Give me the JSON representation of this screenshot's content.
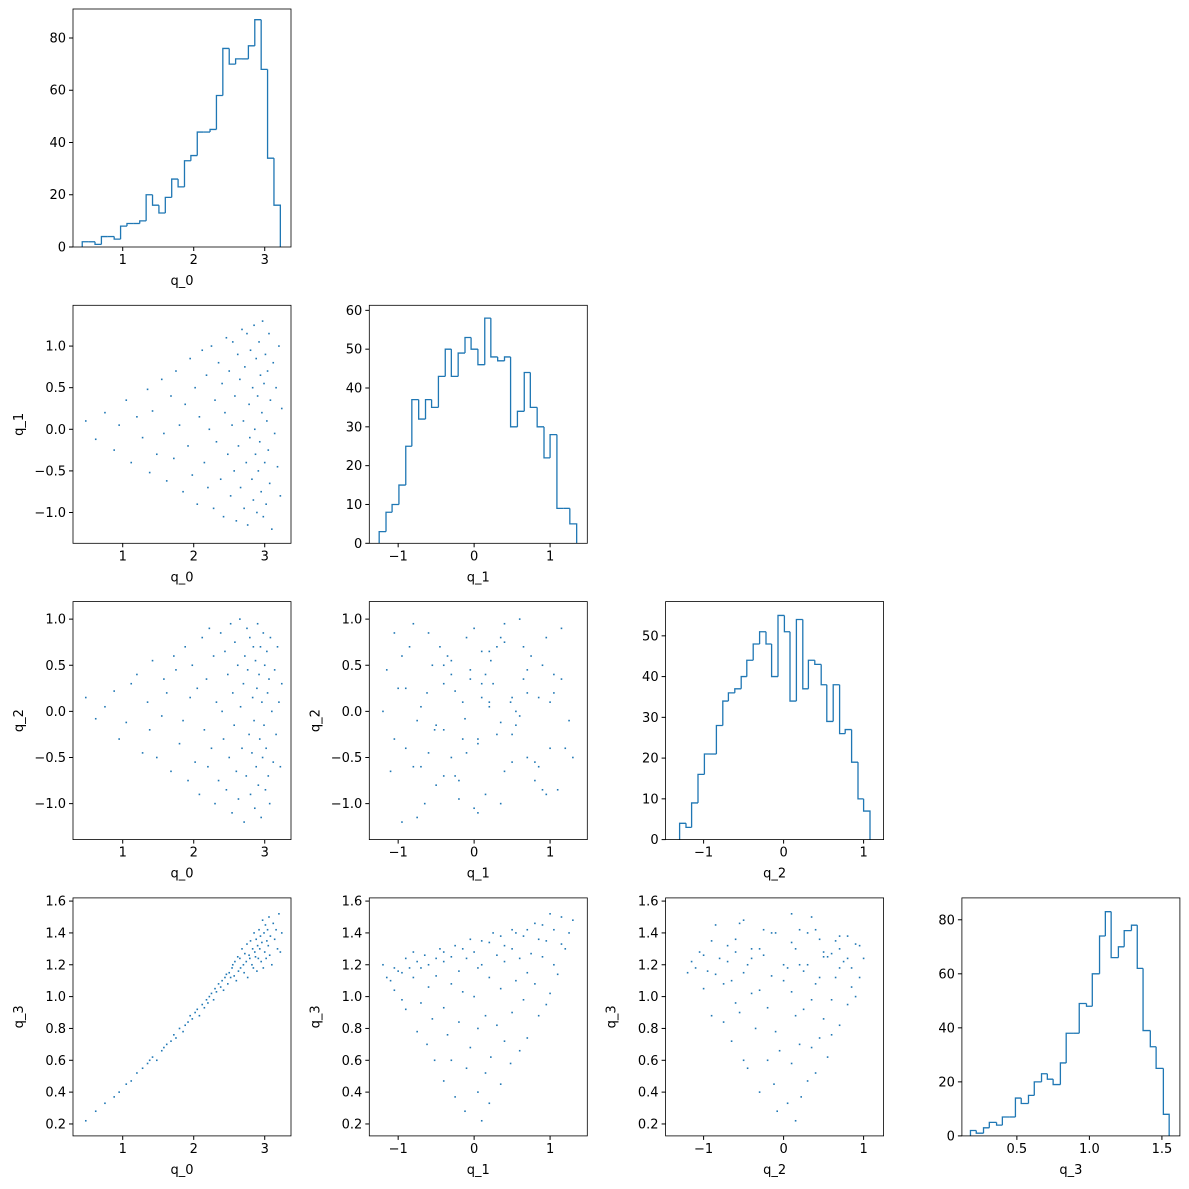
{
  "chart_data": {
    "type": "corner",
    "color": "#1f77b4",
    "variables": [
      {
        "name": "q_0",
        "samples": [
          0.48,
          0.62,
          0.75,
          0.88,
          0.95,
          1.05,
          1.12,
          1.2,
          1.28,
          1.35,
          1.38,
          1.42,
          1.48,
          1.55,
          1.58,
          1.62,
          1.68,
          1.72,
          1.75,
          1.8,
          1.85,
          1.88,
          1.92,
          1.95,
          1.98,
          2.02,
          2.05,
          2.08,
          2.12,
          2.15,
          2.18,
          2.2,
          2.22,
          2.25,
          2.28,
          2.3,
          2.32,
          2.35,
          2.38,
          2.4,
          2.42,
          2.44,
          2.46,
          2.48,
          2.5,
          2.52,
          2.54,
          2.55,
          2.57,
          2.58,
          2.6,
          2.62,
          2.63,
          2.65,
          2.66,
          2.68,
          2.7,
          2.71,
          2.72,
          2.74,
          2.75,
          2.76,
          2.78,
          2.79,
          2.8,
          2.82,
          2.83,
          2.84,
          2.85,
          2.86,
          2.87,
          2.88,
          2.89,
          2.9,
          2.91,
          2.92,
          2.93,
          2.94,
          2.95,
          2.96,
          2.97,
          2.98,
          2.99,
          3.0,
          3.01,
          3.02,
          3.03,
          3.04,
          3.05,
          3.06,
          3.07,
          3.08,
          3.1,
          3.12,
          3.14,
          3.16,
          3.18,
          3.2,
          3.22,
          3.24
        ],
        "bins": [
          0.43,
          0.52,
          0.61,
          0.7,
          0.79,
          0.88,
          0.97,
          1.06,
          1.15,
          1.24,
          1.33,
          1.42,
          1.51,
          1.6,
          1.69,
          1.78,
          1.87,
          1.96,
          2.05,
          2.14,
          2.23,
          2.32,
          2.41,
          2.5,
          2.59,
          2.68,
          2.77,
          2.86,
          2.95,
          3.04,
          3.13,
          3.22
        ],
        "counts": [
          2,
          2,
          1,
          4,
          4,
          3,
          8,
          9,
          9,
          10,
          20,
          16,
          13,
          19,
          26,
          23,
          33,
          35,
          44,
          44,
          45,
          58,
          76,
          70,
          72,
          72,
          77,
          87,
          68,
          34,
          16
        ],
        "xlim": [
          0.3,
          3.37
        ],
        "xticks": [
          1,
          2,
          3
        ],
        "hist_ylim": [
          0,
          91.1
        ],
        "hist_yticks": [
          0,
          20,
          40,
          60,
          80
        ]
      },
      {
        "name": "q_1",
        "samples": [
          0.1,
          -0.12,
          0.2,
          -0.25,
          0.05,
          0.35,
          -0.4,
          0.15,
          -0.1,
          0.48,
          -0.52,
          0.22,
          -0.3,
          0.6,
          -0.05,
          -0.62,
          0.4,
          -0.35,
          0.7,
          0.05,
          -0.75,
          0.3,
          -0.2,
          0.85,
          -0.55,
          0.5,
          -0.9,
          0.15,
          0.95,
          -0.4,
          0.65,
          -0.7,
          0.0,
          1.0,
          -0.95,
          0.35,
          -0.15,
          0.8,
          -0.6,
          0.55,
          -1.05,
          0.2,
          1.1,
          -0.3,
          0.7,
          -0.8,
          0.05,
          1.05,
          -0.5,
          0.4,
          -1.1,
          0.9,
          -0.2,
          0.6,
          -0.7,
          1.2,
          0.1,
          -0.95,
          0.75,
          -0.4,
          1.15,
          -1.15,
          0.3,
          -0.1,
          0.95,
          -0.6,
          0.5,
          -0.85,
          1.25,
          0.0,
          -0.3,
          0.85,
          -1.0,
          0.4,
          -0.5,
          1.05,
          -0.15,
          0.65,
          -0.75,
          0.2,
          1.3,
          -1.05,
          0.55,
          -0.4,
          0.9,
          -0.9,
          0.1,
          0.7,
          -0.25,
          1.15,
          -0.65,
          0.35,
          -1.2,
          0.8,
          -0.05,
          0.5,
          -0.45,
          1.0,
          -0.8,
          0.25
        ],
        "bins": [
          -1.25,
          -1.16,
          -1.08,
          -0.99,
          -0.9,
          -0.82,
          -0.73,
          -0.64,
          -0.56,
          -0.47,
          -0.38,
          -0.3,
          -0.21,
          -0.12,
          -0.04,
          0.05,
          0.14,
          0.22,
          0.31,
          0.4,
          0.48,
          0.57,
          0.66,
          0.74,
          0.83,
          0.92,
          1.0,
          1.09,
          1.18,
          1.26,
          1.35
        ],
        "counts": [
          3,
          8,
          10,
          15,
          25,
          37,
          32,
          37,
          35,
          43,
          50,
          43,
          49,
          53,
          50,
          46,
          58,
          48,
          47,
          48,
          30,
          34,
          44,
          35,
          30,
          22,
          28,
          9,
          9,
          5
        ],
        "xlim": [
          -1.38,
          1.49
        ],
        "xticks": [
          {
            "value": -1,
            "label": "−1"
          },
          0,
          1
        ],
        "ylim": [
          -1.37,
          1.49
        ],
        "yticks": [
          {
            "value": -1,
            "label": "−1.0"
          },
          {
            "value": -0.5,
            "label": "−0.5"
          },
          {
            "value": 0,
            "label": "0.0"
          },
          0.5,
          {
            "value": 1,
            "label": "1.0"
          }
        ],
        "hist_ylim": [
          0,
          61.3
        ],
        "hist_yticks": [
          0,
          10,
          20,
          30,
          40,
          50,
          60
        ]
      },
      {
        "name": "q_2",
        "samples": [
          0.15,
          -0.08,
          0.05,
          0.22,
          -0.3,
          -0.12,
          0.3,
          0.4,
          -0.45,
          0.1,
          -0.2,
          0.55,
          -0.5,
          -0.05,
          0.35,
          0.2,
          -0.65,
          0.6,
          0.45,
          -0.35,
          -0.1,
          0.7,
          -0.75,
          0.15,
          0.5,
          -0.55,
          0.25,
          -0.9,
          0.8,
          -0.2,
          0.35,
          -0.6,
          0.9,
          -0.4,
          0.6,
          -1.0,
          0.1,
          -0.75,
          0.85,
          0.0,
          -0.3,
          0.65,
          -0.85,
          0.4,
          -0.5,
          0.95,
          -1.1,
          0.2,
          -0.15,
          0.75,
          -0.65,
          0.5,
          -0.95,
          1.0,
          0.05,
          -0.4,
          0.3,
          -1.2,
          0.6,
          -0.7,
          0.9,
          0.45,
          -0.25,
          0.8,
          -0.9,
          -0.45,
          0.15,
          0.7,
          -0.1,
          -1.05,
          0.55,
          -0.6,
          0.25,
          0.95,
          -0.8,
          0.4,
          -0.3,
          0.7,
          -1.15,
          0.1,
          -0.5,
          0.85,
          -0.15,
          0.5,
          -0.85,
          -0.4,
          0.65,
          0.2,
          -0.7,
          0.35,
          -1.0,
          0.8,
          0.0,
          -0.55,
          0.45,
          -0.25,
          0.7,
          0.1,
          -0.6,
          0.3
        ],
        "bins": [
          -1.3,
          -1.22,
          -1.15,
          -1.07,
          -0.99,
          -0.92,
          -0.84,
          -0.76,
          -0.69,
          -0.61,
          -0.53,
          -0.46,
          -0.38,
          -0.3,
          -0.22,
          -0.15,
          -0.07,
          0.01,
          0.08,
          0.16,
          0.24,
          0.31,
          0.39,
          0.47,
          0.54,
          0.62,
          0.7,
          0.77,
          0.85,
          0.93,
          1.0,
          1.08
        ],
        "counts": [
          4,
          3,
          9,
          16,
          21,
          21,
          28,
          34,
          36,
          37,
          40,
          44,
          48,
          51,
          48,
          40,
          55,
          51,
          34,
          54,
          37,
          44,
          43,
          38,
          29,
          38,
          26,
          27,
          19,
          10,
          7
        ],
        "xlim": [
          -1.475,
          1.25
        ],
        "xticks": [
          {
            "value": -1,
            "label": "−1"
          },
          0,
          1
        ],
        "ylim": [
          -1.39,
          1.19
        ],
        "yticks": [
          {
            "value": -1,
            "label": "−1.0"
          },
          {
            "value": -0.5,
            "label": "−0.5"
          },
          {
            "value": 0,
            "label": "0.0"
          },
          0.5,
          {
            "value": 1,
            "label": "1.0"
          }
        ],
        "hist_ylim": [
          0,
          58.4
        ],
        "hist_yticks": [
          0,
          10,
          20,
          30,
          40,
          50
        ]
      },
      {
        "name": "q_3",
        "samples": [
          0.22,
          0.28,
          0.33,
          0.37,
          0.4,
          0.45,
          0.47,
          0.52,
          0.55,
          0.58,
          0.6,
          0.62,
          0.6,
          0.66,
          0.68,
          0.7,
          0.72,
          0.76,
          0.74,
          0.8,
          0.78,
          0.82,
          0.84,
          0.88,
          0.86,
          0.9,
          0.92,
          0.88,
          0.95,
          0.93,
          0.98,
          0.96,
          1.0,
          1.02,
          0.98,
          1.05,
          1.03,
          1.08,
          1.06,
          1.1,
          1.04,
          1.12,
          1.14,
          1.08,
          1.15,
          1.12,
          1.18,
          1.2,
          1.13,
          1.22,
          1.1,
          1.25,
          1.16,
          1.24,
          1.18,
          1.3,
          1.2,
          1.15,
          1.27,
          1.22,
          1.33,
          1.12,
          1.26,
          1.24,
          1.35,
          1.2,
          1.3,
          1.18,
          1.4,
          1.28,
          1.25,
          1.36,
          1.16,
          1.32,
          1.24,
          1.42,
          1.3,
          1.38,
          1.22,
          1.34,
          1.48,
          1.18,
          1.4,
          1.28,
          1.45,
          1.24,
          1.35,
          1.42,
          1.32,
          1.5,
          1.26,
          1.38,
          1.2,
          1.46,
          1.36,
          1.42,
          1.3,
          1.52,
          1.28,
          1.4
        ],
        "bins": [
          0.18,
          0.22,
          0.27,
          0.31,
          0.36,
          0.4,
          0.45,
          0.49,
          0.53,
          0.58,
          0.62,
          0.67,
          0.71,
          0.75,
          0.8,
          0.84,
          0.89,
          0.93,
          0.98,
          1.02,
          1.07,
          1.11,
          1.15,
          1.2,
          1.24,
          1.29,
          1.33,
          1.37,
          1.42,
          1.46,
          1.51,
          1.55
        ],
        "counts": [
          2,
          1,
          3,
          5,
          4,
          7,
          7,
          14,
          12,
          15,
          20,
          23,
          21,
          19,
          27,
          38,
          38,
          49,
          48,
          60,
          74,
          83,
          66,
          70,
          76,
          78,
          62,
          39,
          33,
          25,
          8
        ],
        "xlim": [
          0.121,
          1.624
        ],
        "xticks": [
          0.5,
          {
            "value": 1,
            "label": "1.0"
          },
          1.5
        ],
        "ylim": [
          0.125,
          1.62
        ],
        "yticks": [
          0.2,
          0.4,
          0.6,
          0.8,
          {
            "value": 1,
            "label": "1.0"
          },
          1.2,
          1.4,
          1.6
        ],
        "hist_ylim": [
          0,
          88.1
        ],
        "hist_yticks": [
          0,
          20,
          40,
          60,
          80
        ]
      }
    ]
  }
}
